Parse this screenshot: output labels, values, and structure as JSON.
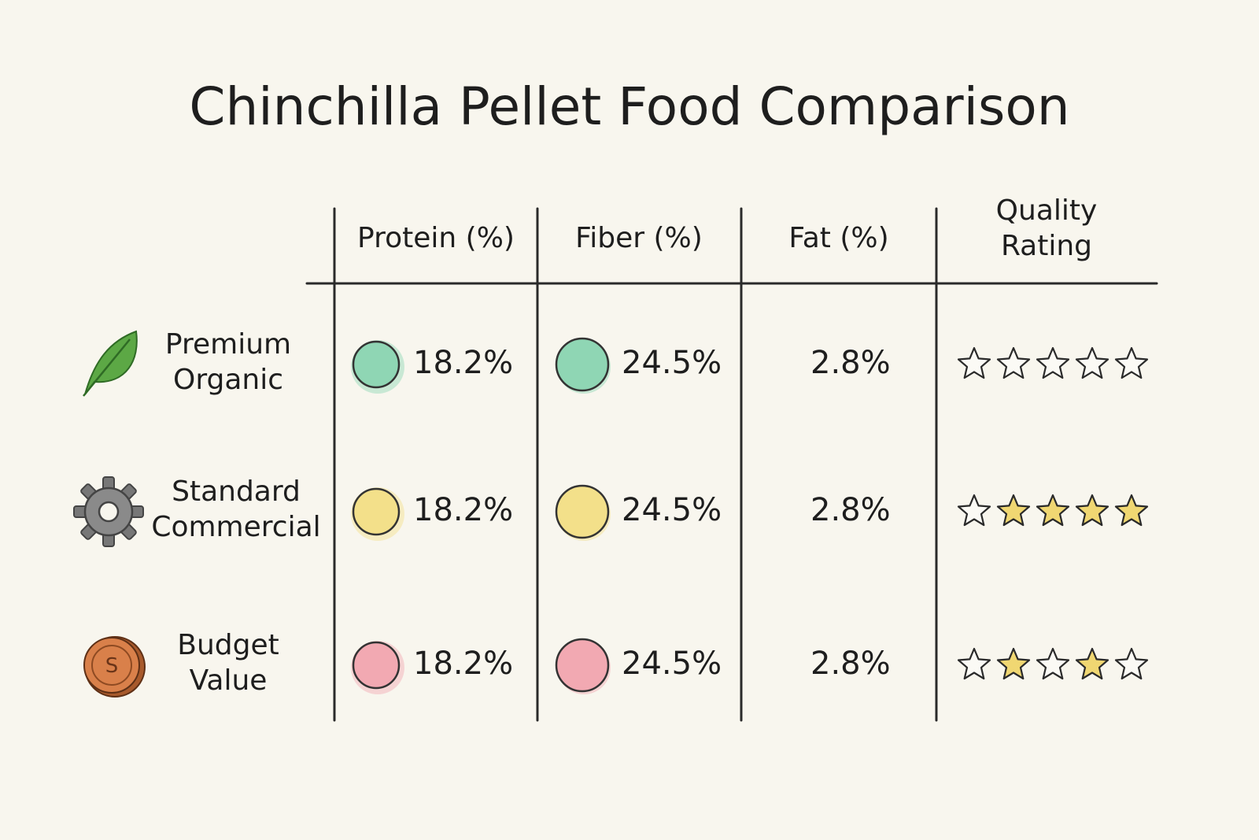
{
  "title": "Chinchilla Pellet Food Comparison",
  "table": {
    "columns": [
      "Protein (%)",
      "Fiber (%)",
      "Fat (%)",
      "Quality Rating"
    ],
    "star_color": "#f0d772",
    "rows": [
      {
        "name": "Premium Organic",
        "icon": "leaf",
        "color": "#8fd6b4",
        "protein": "18.2%",
        "fiber": "24.5%",
        "fat": "2.8%",
        "stars": [
          false,
          false,
          false,
          false,
          false
        ]
      },
      {
        "name": "Standard Commercial",
        "icon": "gear",
        "color": "#f3e08a",
        "protein": "18.2%",
        "fiber": "24.5%",
        "fat": "2.8%",
        "stars": [
          false,
          true,
          true,
          true,
          true
        ]
      },
      {
        "name": "Budget Value",
        "icon": "coin",
        "icon_text": "S",
        "color": "#f2a9b2",
        "protein": "18.2%",
        "fiber": "24.5%",
        "fat": "2.8%",
        "stars": [
          false,
          true,
          false,
          true,
          false
        ]
      }
    ]
  }
}
